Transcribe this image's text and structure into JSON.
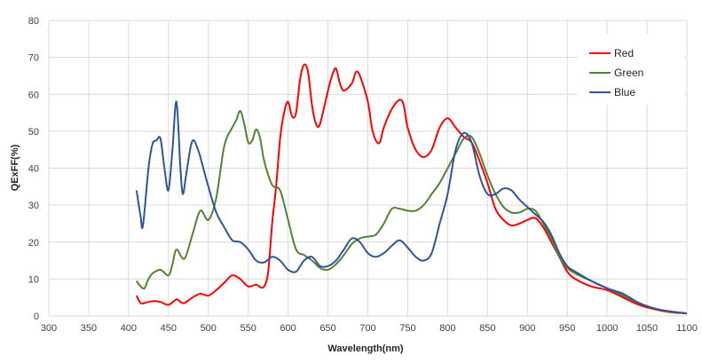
{
  "chart_data": {
    "type": "line",
    "title": "",
    "xlabel": "Wavelength(nm)",
    "ylabel": "QExFF(%)",
    "xlim": [
      300,
      1100
    ],
    "ylim": [
      0,
      80
    ],
    "x_ticks": [
      300,
      350,
      400,
      450,
      500,
      550,
      600,
      650,
      700,
      750,
      800,
      850,
      900,
      950,
      1000,
      1050,
      1100
    ],
    "y_ticks": [
      0,
      10,
      20,
      30,
      40,
      50,
      60,
      70,
      80
    ],
    "grid": "vertical and horizontal",
    "legend_position": "top-right",
    "series": [
      {
        "name": "Red",
        "color": "#ff0000",
        "points": [
          [
            410,
            5.5
          ],
          [
            415,
            3.5
          ],
          [
            420,
            3.5
          ],
          [
            430,
            4
          ],
          [
            440,
            3.8
          ],
          [
            450,
            3
          ],
          [
            460,
            4.5
          ],
          [
            465,
            3.8
          ],
          [
            470,
            3.5
          ],
          [
            480,
            5
          ],
          [
            490,
            6
          ],
          [
            500,
            5.5
          ],
          [
            510,
            7
          ],
          [
            520,
            9
          ],
          [
            530,
            11
          ],
          [
            540,
            10
          ],
          [
            550,
            8
          ],
          [
            560,
            8.5
          ],
          [
            565,
            7.8
          ],
          [
            570,
            8
          ],
          [
            575,
            12
          ],
          [
            580,
            25
          ],
          [
            585,
            35
          ],
          [
            590,
            48
          ],
          [
            595,
            55
          ],
          [
            600,
            58
          ],
          [
            605,
            54
          ],
          [
            610,
            55
          ],
          [
            615,
            64
          ],
          [
            620,
            68
          ],
          [
            625,
            66
          ],
          [
            630,
            57
          ],
          [
            635,
            52
          ],
          [
            640,
            52
          ],
          [
            650,
            61
          ],
          [
            655,
            65
          ],
          [
            660,
            67
          ],
          [
            665,
            63
          ],
          [
            670,
            61
          ],
          [
            680,
            63
          ],
          [
            685,
            66
          ],
          [
            690,
            65
          ],
          [
            700,
            58
          ],
          [
            705,
            51
          ],
          [
            710,
            47.5
          ],
          [
            715,
            47
          ],
          [
            720,
            51
          ],
          [
            730,
            56
          ],
          [
            740,
            58.5
          ],
          [
            745,
            57
          ],
          [
            750,
            51
          ],
          [
            760,
            45
          ],
          [
            770,
            43
          ],
          [
            780,
            45
          ],
          [
            790,
            51
          ],
          [
            800,
            53.5
          ],
          [
            810,
            51
          ],
          [
            820,
            48.5
          ],
          [
            830,
            47
          ],
          [
            840,
            42
          ],
          [
            850,
            36
          ],
          [
            860,
            29
          ],
          [
            870,
            26
          ],
          [
            880,
            24.5
          ],
          [
            890,
            25
          ],
          [
            900,
            26
          ],
          [
            910,
            26.5
          ],
          [
            920,
            24
          ],
          [
            930,
            20
          ],
          [
            940,
            16
          ],
          [
            950,
            12
          ],
          [
            960,
            10
          ],
          [
            980,
            8
          ],
          [
            1000,
            7
          ],
          [
            1020,
            5
          ],
          [
            1040,
            3
          ],
          [
            1060,
            1.8
          ],
          [
            1080,
            1
          ],
          [
            1100,
            0.7
          ]
        ]
      },
      {
        "name": "Green",
        "color": "#548235",
        "points": [
          [
            410,
            9.5
          ],
          [
            415,
            8
          ],
          [
            420,
            7.5
          ],
          [
            425,
            10
          ],
          [
            430,
            11.5
          ],
          [
            440,
            12.5
          ],
          [
            450,
            11
          ],
          [
            455,
            14
          ],
          [
            460,
            18
          ],
          [
            470,
            15.5
          ],
          [
            480,
            22
          ],
          [
            490,
            28.5
          ],
          [
            500,
            26
          ],
          [
            510,
            32
          ],
          [
            520,
            46
          ],
          [
            530,
            51
          ],
          [
            535,
            53
          ],
          [
            540,
            55.5
          ],
          [
            545,
            52
          ],
          [
            550,
            47
          ],
          [
            555,
            47.5
          ],
          [
            560,
            50.5
          ],
          [
            565,
            48
          ],
          [
            570,
            42
          ],
          [
            580,
            35.5
          ],
          [
            590,
            34
          ],
          [
            600,
            26
          ],
          [
            610,
            18
          ],
          [
            620,
            16.5
          ],
          [
            630,
            15
          ],
          [
            640,
            13
          ],
          [
            650,
            12.5
          ],
          [
            660,
            14
          ],
          [
            670,
            16.5
          ],
          [
            680,
            19.5
          ],
          [
            690,
            21
          ],
          [
            700,
            21.5
          ],
          [
            710,
            22
          ],
          [
            720,
            25
          ],
          [
            730,
            29
          ],
          [
            740,
            29
          ],
          [
            750,
            28.5
          ],
          [
            760,
            28.5
          ],
          [
            770,
            30
          ],
          [
            780,
            33
          ],
          [
            790,
            36
          ],
          [
            800,
            40
          ],
          [
            810,
            44
          ],
          [
            820,
            48
          ],
          [
            830,
            48.5
          ],
          [
            840,
            44
          ],
          [
            850,
            38
          ],
          [
            860,
            33
          ],
          [
            870,
            29.5
          ],
          [
            880,
            28
          ],
          [
            890,
            28
          ],
          [
            900,
            29
          ],
          [
            910,
            28.5
          ],
          [
            920,
            25
          ],
          [
            930,
            21
          ],
          [
            940,
            16
          ],
          [
            950,
            13
          ],
          [
            960,
            11.5
          ],
          [
            980,
            9.5
          ],
          [
            1000,
            7.5
          ],
          [
            1020,
            5.5
          ],
          [
            1040,
            3.5
          ],
          [
            1060,
            2
          ],
          [
            1080,
            1.2
          ],
          [
            1100,
            0.7
          ]
        ]
      },
      {
        "name": "Blue",
        "color": "#2f5597",
        "points": [
          [
            410,
            34
          ],
          [
            415,
            27
          ],
          [
            418,
            24.5
          ],
          [
            425,
            40
          ],
          [
            430,
            46.5
          ],
          [
            435,
            47.5
          ],
          [
            440,
            48
          ],
          [
            445,
            40
          ],
          [
            450,
            34
          ],
          [
            455,
            45
          ],
          [
            460,
            58
          ],
          [
            465,
            40
          ],
          [
            468,
            33
          ],
          [
            472,
            38
          ],
          [
            478,
            46
          ],
          [
            482,
            47.5
          ],
          [
            487,
            45
          ],
          [
            490,
            43
          ],
          [
            500,
            35
          ],
          [
            510,
            28
          ],
          [
            520,
            24
          ],
          [
            530,
            20.5
          ],
          [
            540,
            20
          ],
          [
            550,
            18
          ],
          [
            560,
            15
          ],
          [
            570,
            14.5
          ],
          [
            580,
            16
          ],
          [
            590,
            15
          ],
          [
            600,
            12.5
          ],
          [
            610,
            12
          ],
          [
            620,
            15
          ],
          [
            630,
            16
          ],
          [
            640,
            13.5
          ],
          [
            650,
            13.5
          ],
          [
            660,
            15
          ],
          [
            670,
            18
          ],
          [
            680,
            21
          ],
          [
            690,
            20
          ],
          [
            700,
            17
          ],
          [
            710,
            16
          ],
          [
            720,
            17
          ],
          [
            730,
            19
          ],
          [
            740,
            20.5
          ],
          [
            750,
            18.5
          ],
          [
            760,
            16
          ],
          [
            770,
            15
          ],
          [
            780,
            17
          ],
          [
            790,
            25
          ],
          [
            800,
            33
          ],
          [
            810,
            45
          ],
          [
            820,
            49.5
          ],
          [
            830,
            47
          ],
          [
            840,
            38
          ],
          [
            850,
            33
          ],
          [
            860,
            33
          ],
          [
            870,
            34.5
          ],
          [
            880,
            34
          ],
          [
            890,
            31.5
          ],
          [
            900,
            29.5
          ],
          [
            910,
            27.5
          ],
          [
            920,
            25.5
          ],
          [
            930,
            22
          ],
          [
            940,
            17
          ],
          [
            950,
            13.5
          ],
          [
            960,
            12
          ],
          [
            980,
            9.5
          ],
          [
            1000,
            7.5
          ],
          [
            1020,
            6
          ],
          [
            1040,
            3.5
          ],
          [
            1060,
            2
          ],
          [
            1080,
            1.2
          ],
          [
            1100,
            0.7
          ]
        ]
      }
    ]
  }
}
